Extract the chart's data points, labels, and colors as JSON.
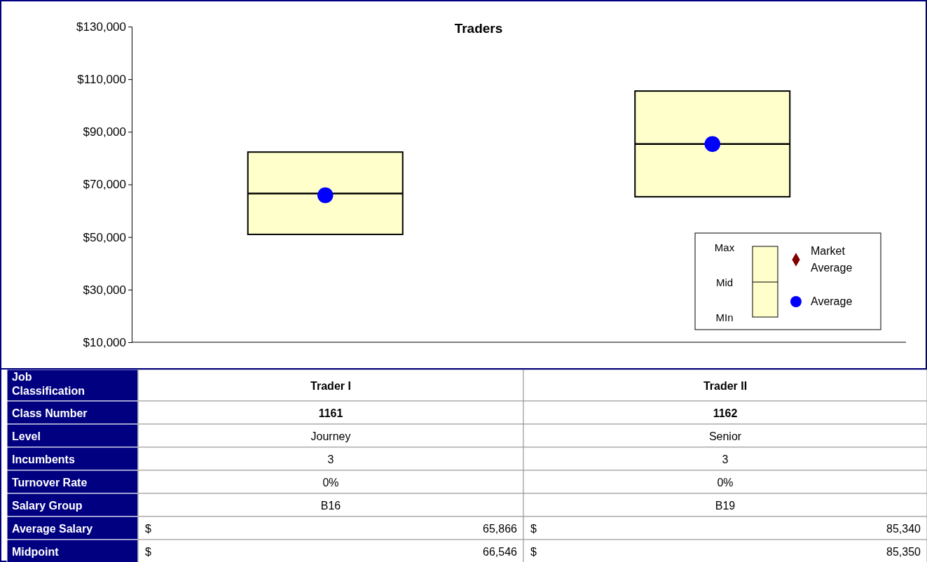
{
  "chart_data": [
    {
      "type": "box",
      "title": "Traders",
      "xlabel": "Job Classification",
      "categories": [
        "Trader I",
        "Trader II"
      ],
      "ylim": [
        10000,
        130000
      ],
      "yticks": [
        {
          "value": 10000,
          "label": "$10,000"
        },
        {
          "value": 30000,
          "label": "$30,000"
        },
        {
          "value": 50000,
          "label": "$50,000"
        },
        {
          "value": 70000,
          "label": "$70,000"
        },
        {
          "value": 90000,
          "label": "$90,000"
        },
        {
          "value": 110000,
          "label": "$110,000"
        },
        {
          "value": 130000,
          "label": "$130,000"
        }
      ],
      "grid": false,
      "legend": "bottom right",
      "annotations": [
        "Max",
        "Mid",
        "MIn"
      ],
      "series": [
        {
          "color": "#ffffcc",
          "boxes": [
            {
              "low": 51000,
              "q1": 51000,
              "median": 66546,
              "q3": 82300,
              "high": 82300
            },
            {
              "low": 65300,
              "q1": 65300,
              "median": 85350,
              "q3": 105500,
              "high": 105500
            }
          ]
        },
        {
          "type": "scatter",
          "name": "Market Average",
          "color": "#800000",
          "marker": "diamond",
          "values": [
            null,
            null
          ]
        },
        {
          "type": "scatter",
          "name": "Average",
          "color": "#0000ff",
          "marker": "circle",
          "values": [
            65866,
            85340
          ]
        }
      ]
    },
    {
      "type": "other",
      "y_categories": [
        "Class Number",
        "Level",
        "Incumbents",
        "Turnover Rate",
        "Salary Group",
        "Average Salary",
        "Midpoint"
      ],
      "cell_labels": [
        [
          "1161",
          "1162"
        ],
        [
          "Journey",
          "Senior"
        ],
        [
          "3",
          "3"
        ],
        [
          "0%",
          "0%"
        ],
        [
          "B16",
          "B19"
        ],
        [
          "$ 65,866",
          "$ 85,340"
        ],
        [
          "$ 66,546",
          "$ 85,350"
        ]
      ]
    }
  ]
}
